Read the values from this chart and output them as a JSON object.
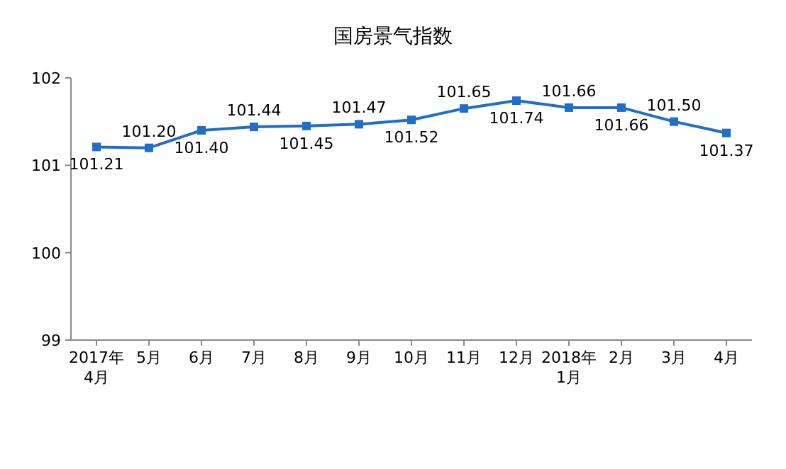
{
  "chart_data": {
    "type": "line",
    "title": "国房景气指数",
    "categories": [
      "2017年\n4月",
      "5月",
      "6月",
      "7月",
      "8月",
      "9月",
      "10月",
      "11月",
      "12月",
      "2018年\n1月",
      "2月",
      "3月",
      "4月"
    ],
    "series": [
      {
        "color": "#1f6fc8",
        "values": [
          101.21,
          101.2,
          101.4,
          101.44,
          101.45,
          101.47,
          101.52,
          101.65,
          101.74,
          101.66,
          101.66,
          101.5,
          101.37
        ],
        "value_labels": [
          "101.21",
          "101.20",
          "101.40",
          "101.44",
          "101.45",
          "101.47",
          "101.52",
          "101.65",
          "101.74",
          "101.66",
          "101.66",
          "101.50",
          "101.37"
        ]
      }
    ],
    "ylim": [
      99,
      102
    ],
    "yticks": [
      99,
      100,
      101,
      102
    ],
    "marker": "square",
    "line_style": "solid",
    "grid": false
  }
}
